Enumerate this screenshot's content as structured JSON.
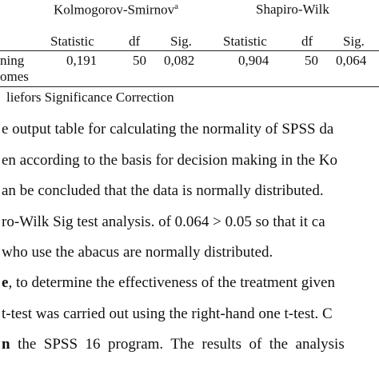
{
  "table": {
    "group_ks": "Kolmogorov-Smirnov",
    "group_ks_sup": "a",
    "group_sw": "Shapiro-Wilk",
    "columns": [
      "Statistic",
      "df",
      "Sig.",
      "Statistic",
      "df",
      "Sig."
    ],
    "row_label_line1": "ning",
    "row_label_line2": "omes",
    "row_values": [
      "0,191",
      "50",
      "0,082",
      "0,904",
      "50",
      "0,064"
    ],
    "footnote": "liefors Significance Correction"
  },
  "body": {
    "lines": [
      "e output table for calculating the normality of SPSS da",
      "en according to the basis for decision making in the Ko",
      "an be concluded that the data is normally distributed.",
      "ro-Wilk Sig test analysis. of 0.064 > 0.05 so that it ca",
      " who use the abacus are normally distributed.",
      "e, to determine the effectiveness of the treatment given",
      "t-test was carried out using the right-hand one t-test. C",
      "n  the  SPSS  16  program.  The  results  of  the  analysis"
    ],
    "line6_bold_prefix": "e",
    "line6_rest": ", to determine the effectiveness of the treatment given",
    "line8_bold_prefix": "n",
    "line8_rest": "  the  SPSS  16  program.  The  results  of  the  analysis"
  }
}
